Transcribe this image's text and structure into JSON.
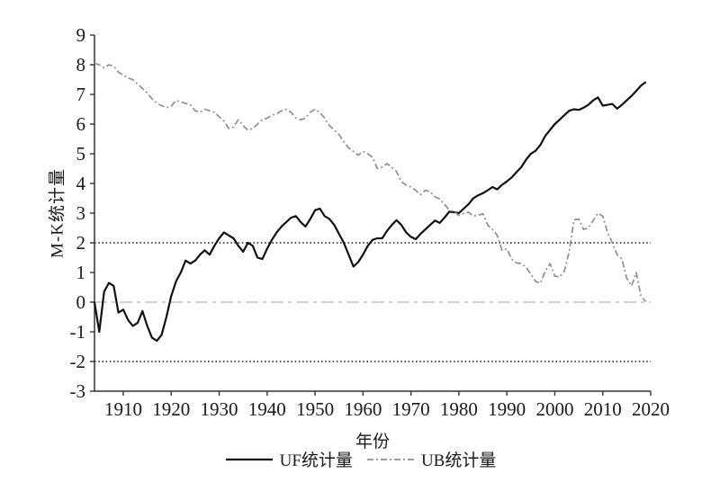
{
  "chart_data": {
    "type": "line",
    "title": "",
    "xlabel": "年份",
    "ylabel": "M-K统计量",
    "xlim": [
      1904,
      2020
    ],
    "ylim": [
      -3,
      9
    ],
    "x_ticks": [
      1910,
      1920,
      1930,
      1940,
      1950,
      1960,
      1970,
      1980,
      1990,
      2000,
      2010,
      2020
    ],
    "y_ticks": [
      -3,
      -2,
      -1,
      0,
      1,
      2,
      3,
      4,
      5,
      6,
      7,
      8,
      9
    ],
    "grid": false,
    "legend_position": "bottom",
    "axis_color": "#333333",
    "reference_lines": [
      {
        "name": "upper-critical-line",
        "y": 2,
        "color": "#222222",
        "line_style": "dotted"
      },
      {
        "name": "zero-line",
        "y": 0,
        "color": "#c3c3c3",
        "line_style": "long-dash-dot"
      },
      {
        "name": "lower-critical-line",
        "y": -2,
        "color": "#222222",
        "line_style": "dotted"
      }
    ],
    "x_start_year": 1904,
    "series": [
      {
        "name": "UF统计量",
        "color": "#111111",
        "line_style": "solid",
        "width": 2.2,
        "values": [
          0.0,
          -1.0,
          0.35,
          0.65,
          0.55,
          -0.35,
          -0.25,
          -0.6,
          -0.8,
          -0.7,
          -0.3,
          -0.8,
          -1.2,
          -1.3,
          -1.1,
          -0.5,
          0.2,
          0.7,
          1.0,
          1.4,
          1.3,
          1.4,
          1.6,
          1.75,
          1.6,
          1.9,
          2.15,
          2.35,
          2.25,
          2.15,
          1.9,
          1.7,
          2.0,
          1.9,
          1.5,
          1.45,
          1.8,
          2.1,
          2.35,
          2.55,
          2.7,
          2.85,
          2.9,
          2.7,
          2.55,
          2.8,
          3.1,
          3.15,
          2.9,
          2.8,
          2.6,
          2.3,
          2.0,
          1.6,
          1.2,
          1.35,
          1.6,
          1.9,
          2.1,
          2.15,
          2.15,
          2.4,
          2.6,
          2.76,
          2.6,
          2.35,
          2.2,
          2.12,
          2.3,
          2.45,
          2.6,
          2.75,
          2.67,
          2.85,
          3.05,
          3.03,
          3.0,
          3.15,
          3.3,
          3.5,
          3.6,
          3.67,
          3.77,
          3.88,
          3.8,
          3.95,
          4.07,
          4.2,
          4.38,
          4.55,
          4.8,
          5.0,
          5.1,
          5.3,
          5.6,
          5.8,
          6.0,
          6.15,
          6.3,
          6.45,
          6.5,
          6.48,
          6.55,
          6.65,
          6.8,
          6.9,
          6.62,
          6.65,
          6.68,
          6.52,
          6.65,
          6.8,
          6.95,
          7.12,
          7.3,
          7.42
        ]
      },
      {
        "name": "UB统计量",
        "color": "#8f8f8f",
        "line_style": "dash-dot",
        "width": 1.7,
        "values": [
          8.05,
          8.0,
          7.9,
          8.0,
          7.95,
          7.75,
          7.65,
          7.55,
          7.5,
          7.35,
          7.2,
          7.05,
          6.85,
          6.7,
          6.62,
          6.55,
          6.6,
          6.8,
          6.75,
          6.7,
          6.65,
          6.45,
          6.4,
          6.5,
          6.45,
          6.4,
          6.25,
          6.1,
          5.85,
          5.9,
          6.15,
          5.95,
          5.8,
          5.85,
          6.0,
          6.15,
          6.2,
          6.3,
          6.35,
          6.45,
          6.5,
          6.4,
          6.2,
          6.15,
          6.2,
          6.4,
          6.5,
          6.4,
          6.2,
          5.95,
          5.8,
          5.65,
          5.4,
          5.2,
          5.08,
          4.95,
          5.08,
          5.0,
          4.88,
          4.5,
          4.55,
          4.67,
          4.55,
          4.4,
          4.05,
          3.95,
          3.88,
          3.77,
          3.62,
          3.77,
          3.72,
          3.55,
          3.48,
          3.3,
          3.1,
          3.05,
          2.92,
          3.0,
          3.03,
          2.9,
          2.93,
          2.98,
          2.6,
          2.45,
          2.25,
          1.75,
          1.8,
          1.45,
          1.32,
          1.3,
          1.18,
          0.94,
          0.7,
          0.64,
          1.05,
          1.3,
          0.88,
          0.85,
          1.05,
          1.7,
          2.78,
          2.8,
          2.45,
          2.5,
          2.75,
          3.0,
          2.9,
          2.35,
          2.0,
          1.6,
          1.45,
          0.8,
          0.55,
          1.0,
          0.18,
          0.02
        ]
      }
    ]
  }
}
